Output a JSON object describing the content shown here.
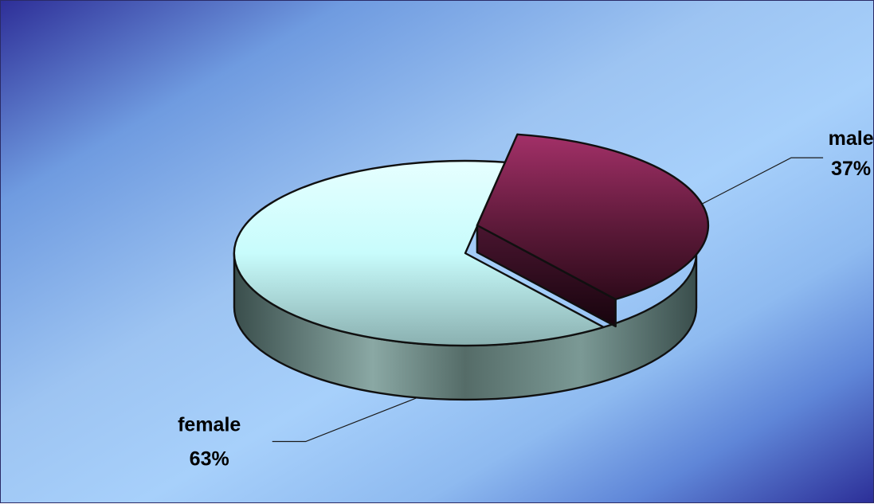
{
  "chart_data": {
    "type": "pie",
    "title": "",
    "slices": [
      {
        "name": "male",
        "value": 37,
        "label_name": "male",
        "label_value": "37%",
        "color": "#8c2456"
      },
      {
        "name": "female",
        "value": 63,
        "label_name": "female",
        "label_value": "63%",
        "color": "#c8fcfc"
      }
    ],
    "legend": "none",
    "background_colors": [
      "#2e2f98",
      "#a7d0fb"
    ]
  }
}
